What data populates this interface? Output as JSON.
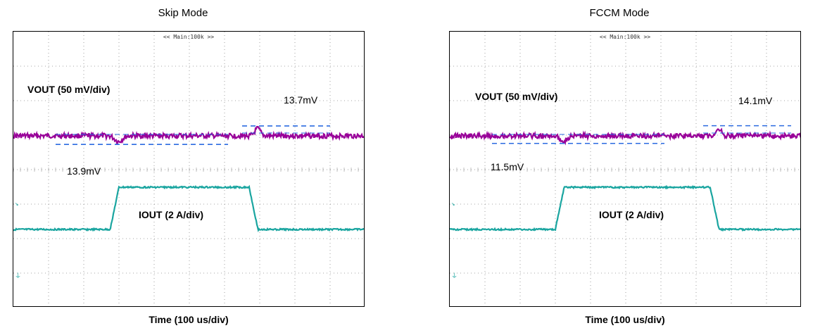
{
  "chart_data": [
    {
      "type": "line",
      "title": "Skip Mode",
      "xlabel": "Time (100 us/div)",
      "top_marker": "<< Main:100k >>",
      "channels": [
        {
          "label": "VOUT (50 mV/div)",
          "color": "#990099"
        },
        {
          "label": "IOUT (2 A/div)",
          "color": "#1aa5a0"
        }
      ],
      "annotations": {
        "overshoot": "13.7mV",
        "undershoot": "13.9mV"
      },
      "vout_deviation_mV": {
        "undershoot": 13.9,
        "overshoot": 13.7
      },
      "load_step_divisions": {
        "rise_start": 2.75,
        "rise_end": 3.0,
        "fall_start": 6.7,
        "fall_end": 6.95
      },
      "grid": {
        "x_divisions": 10,
        "y_divisions": 8
      }
    },
    {
      "type": "line",
      "title": "FCCM Mode",
      "xlabel": "Time (100 us/div)",
      "top_marker": "<< Main:100k >>",
      "channels": [
        {
          "label": "VOUT (50 mV/div)",
          "color": "#990099"
        },
        {
          "label": "IOUT (2 A/div)",
          "color": "#1aa5a0"
        }
      ],
      "annotations": {
        "overshoot": "14.1mV",
        "undershoot": "11.5mV"
      },
      "vout_deviation_mV": {
        "undershoot": 11.5,
        "overshoot": 14.1
      },
      "load_step_divisions": {
        "rise_start": 3.0,
        "rise_end": 3.25,
        "fall_start": 7.4,
        "fall_end": 7.65
      },
      "grid": {
        "x_divisions": 10,
        "y_divisions": 8
      }
    }
  ]
}
